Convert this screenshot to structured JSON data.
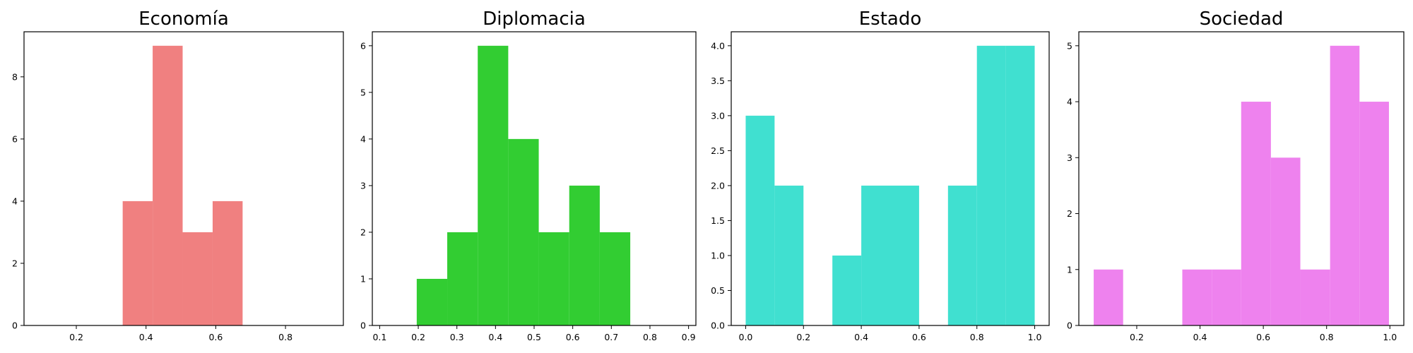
{
  "chart_data": [
    {
      "type": "bar",
      "title": "Economía",
      "color": "#f08080",
      "xlim": [
        0.05,
        0.966
      ],
      "ylim": [
        0,
        9.45
      ],
      "xticks": [
        0.2,
        0.4,
        0.6,
        0.8
      ],
      "xtick_labels": [
        "0.2",
        "0.4",
        "0.6",
        "0.8"
      ],
      "yticks": [
        0,
        2,
        4,
        6,
        8
      ],
      "ytick_labels": [
        "0",
        "2",
        "4",
        "6",
        "8"
      ],
      "bins": [
        {
          "x0": 0.333,
          "x1": 0.419,
          "value": 4
        },
        {
          "x0": 0.419,
          "x1": 0.505,
          "value": 9
        },
        {
          "x0": 0.505,
          "x1": 0.591,
          "value": 3
        },
        {
          "x0": 0.591,
          "x1": 0.677,
          "value": 4
        }
      ]
    },
    {
      "type": "bar",
      "title": "Diplomacia",
      "color": "#32cd32",
      "xlim": [
        0.081,
        0.919
      ],
      "ylim": [
        0,
        6.3
      ],
      "xticks": [
        0.1,
        0.2,
        0.3,
        0.4,
        0.5,
        0.6,
        0.7,
        0.8,
        0.9
      ],
      "xtick_labels": [
        "0.1",
        "0.2",
        "0.3",
        "0.4",
        "0.5",
        "0.6",
        "0.7",
        "0.8",
        "0.9"
      ],
      "yticks": [
        0,
        1,
        2,
        3,
        4,
        5,
        6
      ],
      "ytick_labels": [
        "0",
        "1",
        "2",
        "3",
        "4",
        "5",
        "6"
      ],
      "bins": [
        {
          "x0": 0.196,
          "x1": 0.275,
          "value": 1
        },
        {
          "x0": 0.275,
          "x1": 0.354,
          "value": 2
        },
        {
          "x0": 0.354,
          "x1": 0.433,
          "value": 6
        },
        {
          "x0": 0.433,
          "x1": 0.512,
          "value": 4
        },
        {
          "x0": 0.512,
          "x1": 0.591,
          "value": 2
        },
        {
          "x0": 0.591,
          "x1": 0.67,
          "value": 3
        },
        {
          "x0": 0.67,
          "x1": 0.749,
          "value": 2
        }
      ]
    },
    {
      "type": "bar",
      "title": "Estado",
      "color": "#40e0d0",
      "xlim": [
        -0.05,
        1.05
      ],
      "ylim": [
        0,
        4.2
      ],
      "xticks": [
        0.0,
        0.2,
        0.4,
        0.6,
        0.8,
        1.0
      ],
      "xtick_labels": [
        "0.0",
        "0.2",
        "0.4",
        "0.6",
        "0.8",
        "1.0"
      ],
      "yticks": [
        0,
        0.5,
        1.0,
        1.5,
        2.0,
        2.5,
        3.0,
        3.5,
        4.0
      ],
      "ytick_labels": [
        "0.0",
        "0.5",
        "1.0",
        "1.5",
        "2.0",
        "2.5",
        "3.0",
        "3.5",
        "4.0"
      ],
      "bins": [
        {
          "x0": 0.0,
          "x1": 0.1,
          "value": 3
        },
        {
          "x0": 0.1,
          "x1": 0.2,
          "value": 2
        },
        {
          "x0": 0.2,
          "x1": 0.3,
          "value": 0
        },
        {
          "x0": 0.3,
          "x1": 0.4,
          "value": 1
        },
        {
          "x0": 0.4,
          "x1": 0.5,
          "value": 2
        },
        {
          "x0": 0.5,
          "x1": 0.6,
          "value": 2
        },
        {
          "x0": 0.6,
          "x1": 0.7,
          "value": 0
        },
        {
          "x0": 0.7,
          "x1": 0.8,
          "value": 2
        },
        {
          "x0": 0.8,
          "x1": 0.9,
          "value": 4
        },
        {
          "x0": 0.9,
          "x1": 1.0,
          "value": 4
        }
      ]
    },
    {
      "type": "bar",
      "title": "Sociedad",
      "color": "#ee82ee",
      "xlim": [
        0.017,
        1.044
      ],
      "ylim": [
        0,
        5.25
      ],
      "xticks": [
        0.2,
        0.4,
        0.6,
        0.8,
        1.0
      ],
      "xtick_labels": [
        "0.2",
        "0.4",
        "0.6",
        "0.8",
        "1.0"
      ],
      "yticks": [
        0,
        1,
        2,
        3,
        4,
        5
      ],
      "ytick_labels": [
        "0",
        "1",
        "2",
        "3",
        "4",
        "5"
      ],
      "bins": [
        {
          "x0": 0.064,
          "x1": 0.157,
          "value": 1
        },
        {
          "x0": 0.157,
          "x1": 0.25,
          "value": 0
        },
        {
          "x0": 0.25,
          "x1": 0.344,
          "value": 0
        },
        {
          "x0": 0.344,
          "x1": 0.437,
          "value": 1
        },
        {
          "x0": 0.437,
          "x1": 0.53,
          "value": 1
        },
        {
          "x0": 0.53,
          "x1": 0.624,
          "value": 4
        },
        {
          "x0": 0.624,
          "x1": 0.717,
          "value": 3
        },
        {
          "x0": 0.717,
          "x1": 0.811,
          "value": 1
        },
        {
          "x0": 0.811,
          "x1": 0.904,
          "value": 5
        },
        {
          "x0": 0.904,
          "x1": 0.997,
          "value": 4
        }
      ]
    }
  ]
}
